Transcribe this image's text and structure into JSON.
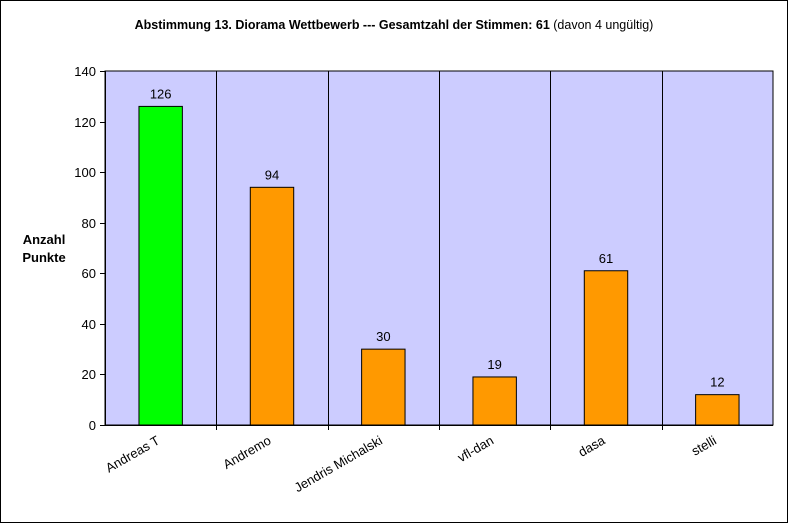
{
  "chart_data": {
    "type": "bar",
    "title": "Abstimmung 13. Diorama Wettbewerb --- Gesamtzahl der Stimmen: 61",
    "subtitle": "(davon 4 ungültig)",
    "ylabel_line1": "Anzahl",
    "ylabel_line2": "Punkte",
    "xlabel": "",
    "categories": [
      "Andreas T",
      "Andremo",
      "Jendris Michalski",
      "vfl-dan",
      "dasa",
      "stelli"
    ],
    "values": [
      126,
      94,
      30,
      19,
      61,
      12
    ],
    "ylim": [
      0,
      140
    ],
    "yticks": [
      0,
      20,
      40,
      60,
      80,
      100,
      120,
      140
    ],
    "ytick_labels": [
      "0",
      "20",
      "40",
      "60",
      "80",
      "100",
      "120",
      "140"
    ],
    "data_labels": [
      "126",
      "94",
      "30",
      "19",
      "61",
      "12"
    ],
    "grid": "vertical category separators",
    "legend": "none",
    "colors": {
      "plot_background": "#ccccff",
      "bar_winner": "#00ff00",
      "bar_default": "#ff9900",
      "outline": "#000000"
    }
  }
}
